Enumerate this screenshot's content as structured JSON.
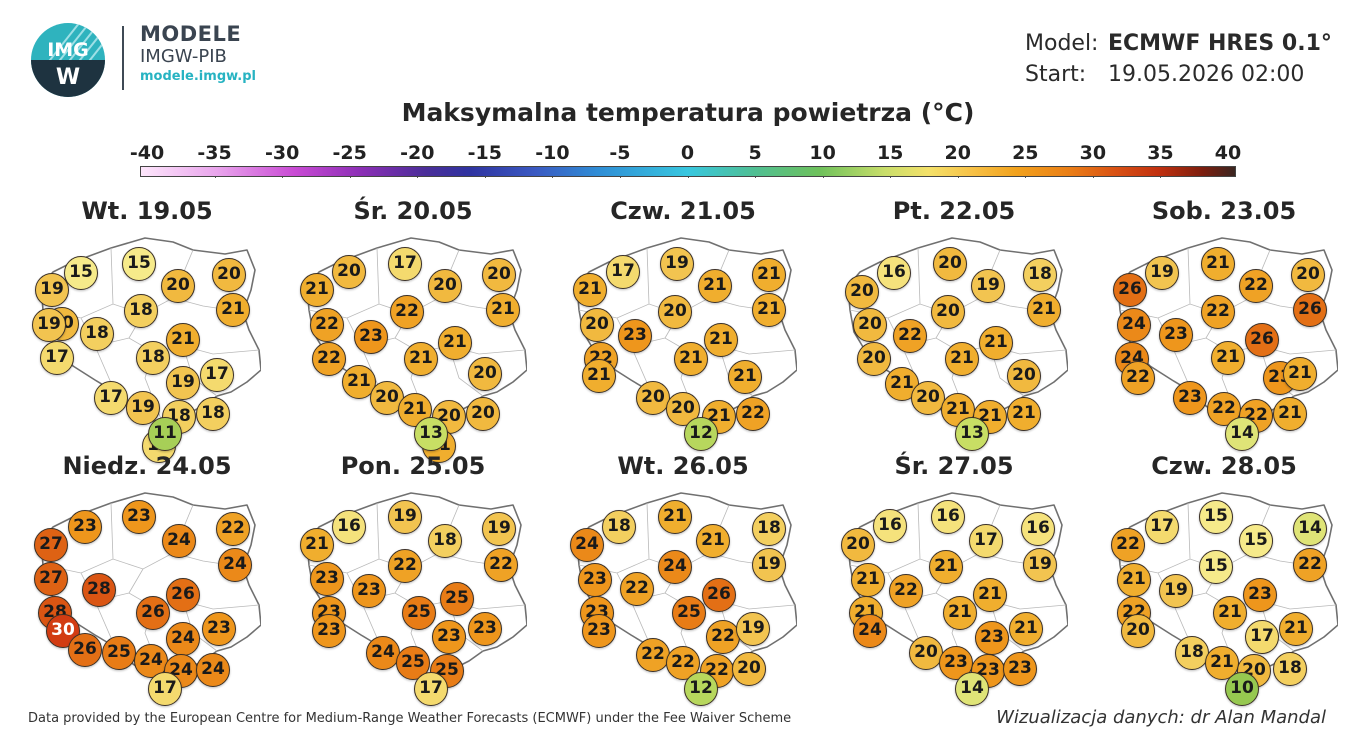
{
  "brand": {
    "logo_text_top": "IMG",
    "logo_text_bottom": "W",
    "name": "MODELE",
    "org": "IMGW-PIB",
    "url": "modele.imgw.pl"
  },
  "meta": {
    "model_label": "Model:",
    "model_value": "ECMWF HRES 0.1°",
    "start_label": "Start:",
    "start_value": "19.05.2026 02:00"
  },
  "title": "Maksymalna temperatura powietrza (°C)",
  "scale": {
    "labels": [
      "-40",
      "-35",
      "-30",
      "-25",
      "-20",
      "-15",
      "-10",
      "-5",
      "0",
      "5",
      "10",
      "15",
      "20",
      "25",
      "30",
      "35",
      "40"
    ]
  },
  "days": [
    {
      "label": "Wt. 19.05",
      "values": [
        19,
        15,
        15,
        20,
        20,
        20,
        18,
        21,
        19,
        18,
        21,
        17,
        18,
        19,
        17,
        17,
        19,
        18,
        18,
        17,
        11
      ]
    },
    {
      "label": "Śr. 20.05",
      "values": [
        21,
        20,
        17,
        20,
        20,
        22,
        22,
        21,
        22,
        23,
        21,
        21,
        21,
        20,
        20,
        21,
        20,
        20,
        21,
        13
      ]
    },
    {
      "label": "Czw. 21.05",
      "values": [
        21,
        17,
        19,
        21,
        21,
        20,
        20,
        21,
        22,
        23,
        21,
        21,
        21,
        21,
        20,
        20,
        21,
        22,
        12
      ]
    },
    {
      "label": "Pt. 22.05",
      "values": [
        20,
        16,
        20,
        19,
        18,
        20,
        20,
        21,
        20,
        22,
        21,
        21,
        21,
        20,
        20,
        21,
        21,
        21,
        13
      ]
    },
    {
      "label": "Sob. 23.05",
      "values": [
        26,
        19,
        21,
        22,
        20,
        24,
        22,
        26,
        24,
        23,
        26,
        22,
        21,
        23,
        21,
        23,
        22,
        22,
        21,
        14
      ]
    },
    {
      "label": "Niedz. 24.05",
      "values": [
        27,
        23,
        23,
        24,
        22,
        27,
        24,
        28,
        28,
        26,
        30,
        26,
        26,
        24,
        23,
        25,
        24,
        24,
        24,
        17
      ]
    },
    {
      "label": "Pon. 25.05",
      "values": [
        21,
        16,
        19,
        18,
        19,
        23,
        22,
        22,
        23,
        23,
        25,
        23,
        25,
        23,
        23,
        24,
        25,
        25,
        17
      ]
    },
    {
      "label": "Wt. 26.05",
      "values": [
        24,
        18,
        21,
        21,
        18,
        23,
        24,
        19,
        23,
        22,
        26,
        23,
        25,
        22,
        19,
        22,
        22,
        22,
        20,
        12
      ]
    },
    {
      "label": "Śr. 27.05",
      "values": [
        20,
        16,
        16,
        17,
        16,
        21,
        21,
        19,
        21,
        22,
        21,
        24,
        21,
        23,
        21,
        20,
        23,
        23,
        23,
        14
      ]
    },
    {
      "label": "Czw. 28.05",
      "values": [
        22,
        17,
        15,
        15,
        14,
        21,
        15,
        22,
        22,
        19,
        23,
        20,
        21,
        17,
        21,
        18,
        21,
        20,
        18,
        10
      ]
    }
  ],
  "footer": {
    "left": "Data provided by the European Centre for Medium-Range Weather Forecasts (ECMWF) under the Fee Waiver Scheme",
    "right": "Wizualizacja danych: dr Alan Mandal"
  }
}
